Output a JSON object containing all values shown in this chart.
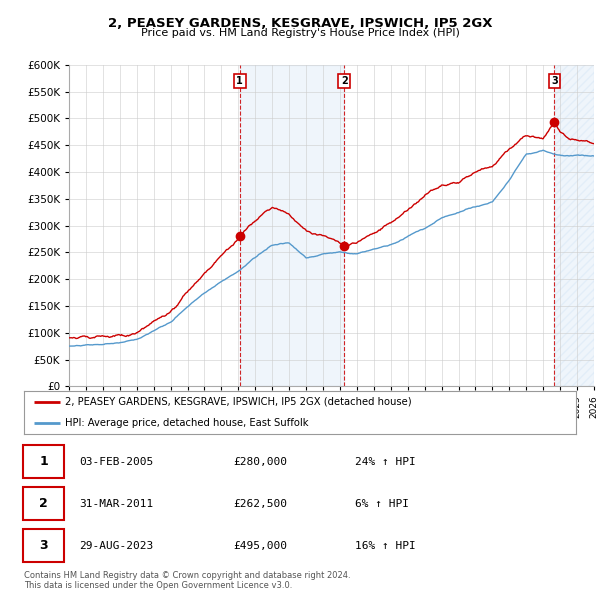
{
  "title": "2, PEASEY GARDENS, KESGRAVE, IPSWICH, IP5 2GX",
  "subtitle": "Price paid vs. HM Land Registry's House Price Index (HPI)",
  "ytick_values": [
    0,
    50000,
    100000,
    150000,
    200000,
    250000,
    300000,
    350000,
    400000,
    450000,
    500000,
    550000,
    600000
  ],
  "x_start_year": 1995,
  "x_end_year": 2026,
  "transactions": [
    {
      "date": 2005.08,
      "price": 280000,
      "label": "1"
    },
    {
      "date": 2011.25,
      "price": 262500,
      "label": "2"
    },
    {
      "date": 2023.66,
      "price": 495000,
      "label": "3"
    }
  ],
  "transaction_table": [
    {
      "num": "1",
      "date": "03-FEB-2005",
      "price": "£280,000",
      "pct": "24%",
      "arrow": "↑",
      "hpi": "HPI"
    },
    {
      "num": "2",
      "date": "31-MAR-2011",
      "price": "£262,500",
      "pct": "6%",
      "arrow": "↑",
      "hpi": "HPI"
    },
    {
      "num": "3",
      "date": "29-AUG-2023",
      "price": "£495,000",
      "pct": "16%",
      "arrow": "↑",
      "hpi": "HPI"
    }
  ],
  "legend_items": [
    {
      "label": "2, PEASEY GARDENS, KESGRAVE, IPSWICH, IP5 2GX (detached house)",
      "color": "#cc0000"
    },
    {
      "label": "HPI: Average price, detached house, East Suffolk",
      "color": "#5599cc"
    }
  ],
  "footer": "Contains HM Land Registry data © Crown copyright and database right 2024.\nThis data is licensed under the Open Government Licence v3.0.",
  "bg_color": "#ffffff",
  "grid_color": "#cccccc"
}
